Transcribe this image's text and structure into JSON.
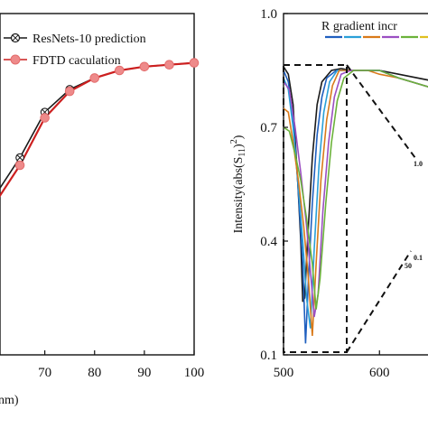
{
  "chart_data": [
    {
      "type": "line",
      "xlabel": "nm)",
      "ylabel": "",
      "xlim": [
        61,
        100
      ],
      "ylim": [
        0.1,
        1.0
      ],
      "x_ticks": [
        "70",
        "80",
        "90",
        "100"
      ],
      "legend_placement": "top-right",
      "series": [
        {
          "name": "ResNets-10 prediction",
          "color": "#1a1a1a",
          "marker": "crossed-circle",
          "x": [
            60,
            65,
            70,
            75,
            80,
            85,
            90,
            95,
            100
          ],
          "y": [
            0.52,
            0.62,
            0.74,
            0.8,
            0.83,
            0.85,
            0.86,
            0.865,
            0.87
          ]
        },
        {
          "name": "FDTD caculation",
          "color": "#cc1f1f",
          "marker_color": "#ee8a8a",
          "marker": "circle",
          "x": [
            60,
            65,
            70,
            75,
            80,
            85,
            90,
            95,
            100
          ],
          "y": [
            0.5,
            0.6,
            0.725,
            0.795,
            0.83,
            0.85,
            0.86,
            0.865,
            0.87
          ]
        }
      ]
    },
    {
      "type": "line",
      "xlabel": "",
      "ylabel": "Intensity(abs(S",
      "ylabel_sub": "11",
      "ylabel_tail": ")",
      "ylabel_sup": "2",
      "ylabel_end": ")",
      "xlim": [
        500,
        660
      ],
      "ylim": [
        0.1,
        1.0
      ],
      "x_ticks": [
        "500",
        "600"
      ],
      "y_ticks": [
        "1.0",
        "0.7",
        "0.4",
        "0.1"
      ],
      "legend_title": "R gradient incr",
      "legend_colors": [
        "#1f5fbf",
        "#2aa0d8",
        "#d97a1a",
        "#9b4fc2",
        "#6bb23a",
        "#e0c020"
      ],
      "annotations": [
        "1.0",
        "0.1",
        "50"
      ],
      "series": [
        {
          "color": "#1a1a1a",
          "x": [
            500,
            505,
            510,
            515,
            518,
            520,
            522,
            525,
            530,
            535,
            540,
            550,
            560,
            570,
            580,
            600,
            620,
            660
          ],
          "y": [
            0.86,
            0.84,
            0.76,
            0.55,
            0.4,
            0.24,
            0.25,
            0.4,
            0.62,
            0.76,
            0.82,
            0.85,
            0.855,
            0.85,
            0.85,
            0.85,
            0.84,
            0.82
          ]
        },
        {
          "color": "#1f5fbf",
          "x": [
            500,
            505,
            510,
            515,
            520,
            523,
            526,
            530,
            535,
            540,
            545,
            555,
            565,
            575,
            585,
            600,
            620,
            660
          ],
          "y": [
            0.85,
            0.82,
            0.72,
            0.55,
            0.34,
            0.13,
            0.3,
            0.5,
            0.68,
            0.78,
            0.83,
            0.85,
            0.85,
            0.85,
            0.85,
            0.85,
            0.83,
            0.8
          ]
        },
        {
          "color": "#2aa0d8",
          "x": [
            500,
            505,
            510,
            515,
            520,
            524,
            528,
            532,
            537,
            542,
            548,
            556,
            566,
            576,
            586,
            600,
            620,
            660
          ],
          "y": [
            0.83,
            0.8,
            0.7,
            0.56,
            0.4,
            0.25,
            0.17,
            0.38,
            0.6,
            0.74,
            0.82,
            0.85,
            0.85,
            0.85,
            0.85,
            0.85,
            0.83,
            0.8
          ]
        },
        {
          "color": "#d97a1a",
          "x": [
            500,
            505,
            510,
            516,
            521,
            526,
            530,
            534,
            539,
            545,
            551,
            558,
            568,
            578,
            588,
            600,
            620,
            660
          ],
          "y": [
            0.75,
            0.74,
            0.66,
            0.55,
            0.44,
            0.3,
            0.15,
            0.34,
            0.56,
            0.72,
            0.81,
            0.85,
            0.85,
            0.85,
            0.85,
            0.84,
            0.83,
            0.8
          ]
        },
        {
          "color": "#9b4fc2",
          "x": [
            500,
            506,
            512,
            518,
            524,
            528,
            532,
            536,
            541,
            547,
            553,
            560,
            570,
            580,
            590,
            600,
            620,
            660
          ],
          "y": [
            0.82,
            0.8,
            0.7,
            0.58,
            0.44,
            0.32,
            0.2,
            0.26,
            0.48,
            0.66,
            0.78,
            0.84,
            0.85,
            0.85,
            0.85,
            0.85,
            0.83,
            0.8
          ]
        },
        {
          "color": "#6bb23a",
          "x": [
            500,
            506,
            512,
            518,
            524,
            530,
            534,
            538,
            544,
            550,
            556,
            563,
            573,
            583,
            593,
            600,
            620,
            660
          ],
          "y": [
            0.7,
            0.69,
            0.63,
            0.56,
            0.46,
            0.34,
            0.22,
            0.3,
            0.5,
            0.66,
            0.77,
            0.83,
            0.85,
            0.85,
            0.85,
            0.85,
            0.83,
            0.8
          ]
        }
      ]
    }
  ]
}
